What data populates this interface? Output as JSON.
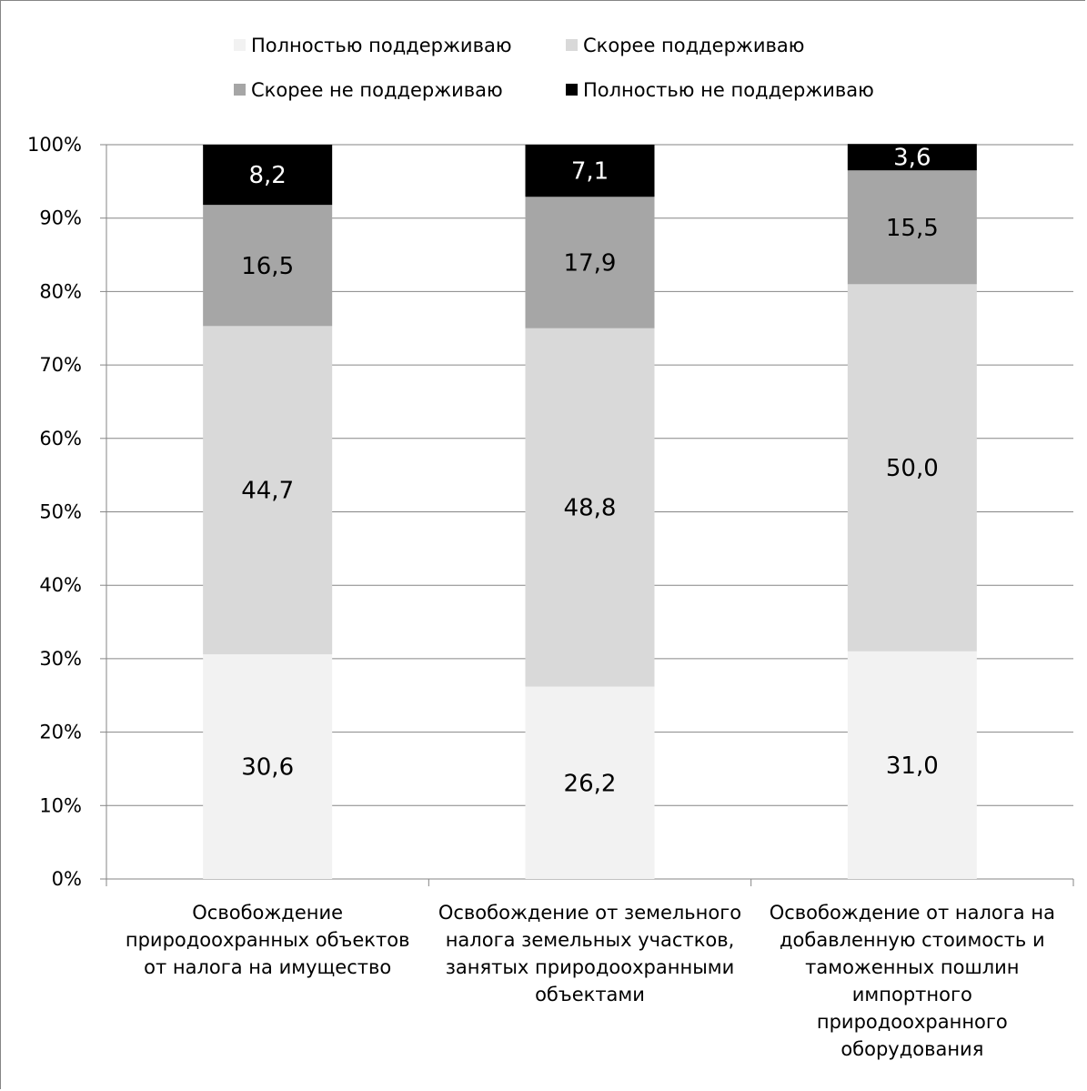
{
  "chart_data": {
    "type": "bar",
    "stacked": true,
    "percent_stacked": true,
    "categories": [
      [
        "Освобождение",
        "природоохранных объектов",
        "от налога на имущество"
      ],
      [
        "Освобождение от земельного",
        "налога земельных участков,",
        "занятых природоохранными",
        "объектами"
      ],
      [
        "Освобождение от налога на",
        "добавленную стоимость и",
        "таможенных пошлин",
        "импортного",
        "природоохранного",
        "оборудования"
      ]
    ],
    "series": [
      {
        "name": "Полностью поддерживаю",
        "color": "#f2f2f2",
        "values": [
          30.6,
          26.2,
          31.0
        ],
        "labels": [
          "30,6",
          "26,2",
          "31,0"
        ]
      },
      {
        "name": "Скорее поддерживаю",
        "color": "#d9d9d9",
        "values": [
          44.7,
          48.8,
          50.0
        ],
        "labels": [
          "44,7",
          "48,8",
          "50,0"
        ]
      },
      {
        "name": "Скорее не поддерживаю",
        "color": "#a6a6a6",
        "values": [
          16.5,
          17.9,
          15.5
        ],
        "labels": [
          "16,5",
          "17,9",
          "15,5"
        ]
      },
      {
        "name": "Полностью не поддерживаю",
        "color": "#000000",
        "values": [
          8.2,
          7.1,
          3.6
        ],
        "labels": [
          "8,2",
          "7,1",
          "3,6"
        ]
      }
    ],
    "yticks": [
      "0%",
      "10%",
      "20%",
      "30%",
      "40%",
      "50%",
      "60%",
      "70%",
      "80%",
      "90%",
      "100%"
    ],
    "ylim": [
      0,
      100
    ],
    "grid": true,
    "legend_position": "top"
  }
}
